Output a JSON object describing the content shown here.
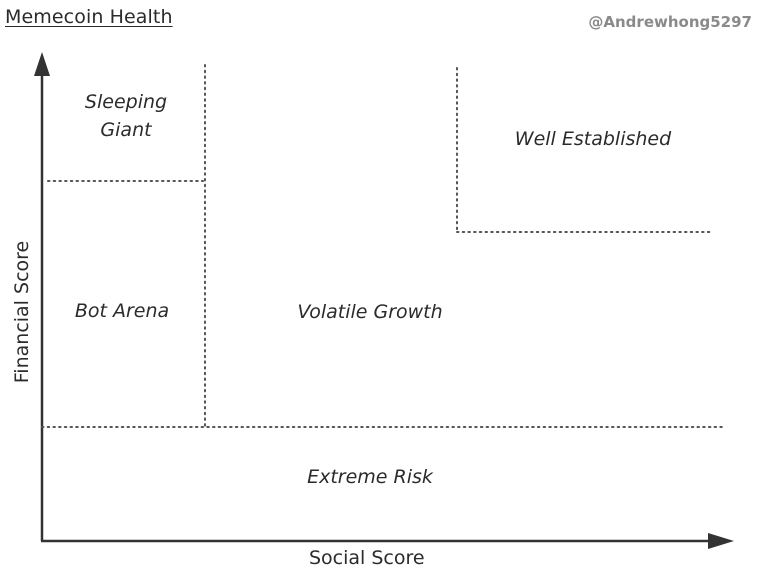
{
  "header": {
    "title": "Memecoin Health",
    "author": "@Andrewhong5297"
  },
  "axes": {
    "x_label": "Social Score",
    "y_label": "Financial Score"
  },
  "regions": {
    "sleeping_giant_line1": "Sleeping",
    "sleeping_giant_line2": "Giant",
    "well_established": "Well Established",
    "bot_arena": "Bot Arena",
    "volatile_growth": "Volatile Growth",
    "extreme_risk": "Extreme Risk"
  },
  "style": {
    "line_color": "#333333",
    "divider_color": "#555555"
  }
}
